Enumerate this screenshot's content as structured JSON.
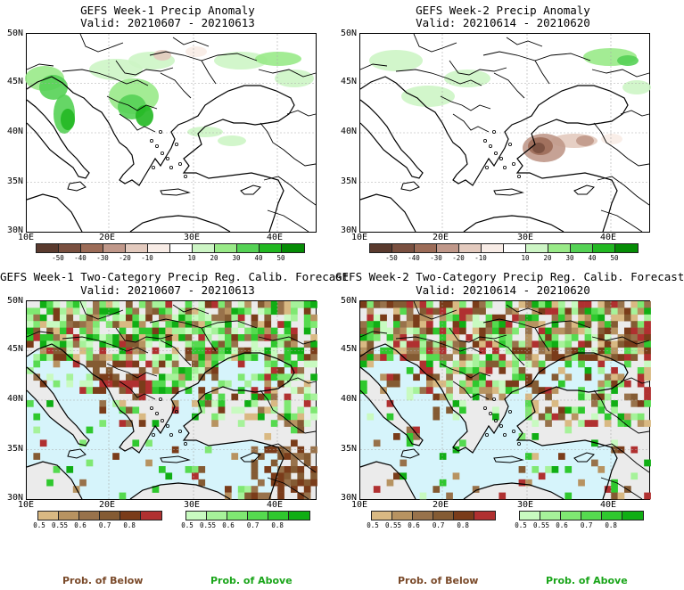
{
  "panels": [
    {
      "title": "GEFS Week-1 Precip Anomaly",
      "valid": "Valid: 20210607 - 20210613"
    },
    {
      "title": "GEFS Week-2 Precip Anomaly",
      "valid": "Valid: 20210614 - 20210620"
    },
    {
      "title": "GEFS Week-1 Two-Category Precip Reg. Calib. Forecast",
      "valid": "Valid: 20210607 - 20210613"
    },
    {
      "title": "GEFS Week-2 Two-Category Precip Reg. Calib. Forecast",
      "valid": "Valid: 20210614 - 20210620"
    }
  ],
  "lat_labels": [
    "50N",
    "45N",
    "40N",
    "35N",
    "30N"
  ],
  "lon_labels": [
    "10E",
    "20E",
    "30E",
    "40E"
  ],
  "anomaly_colorbar": {
    "ticks": [
      "-50",
      "-40",
      "-30",
      "-20",
      "-10",
      "10",
      "20",
      "30",
      "40",
      "50"
    ],
    "colors": [
      "#5a3a2e",
      "#7a5040",
      "#9c6c58",
      "#c0988a",
      "#e3cabe",
      "#f8ece6",
      "#ffffff",
      "#cdf5c5",
      "#99ea88",
      "#55d255",
      "#22b822",
      "#058c05"
    ]
  },
  "prob_below": {
    "ticks": [
      "0.5",
      "0.55",
      "0.6",
      "0.7",
      "0.8"
    ],
    "colors": [
      "#d9b983",
      "#b79361",
      "#98724b",
      "#845b33",
      "#7a3c1a",
      "#b03030"
    ]
  },
  "prob_above": {
    "ticks": [
      "0.5",
      "0.55",
      "0.6",
      "0.7",
      "0.8"
    ],
    "colors": [
      "#c8fac0",
      "#a6f29a",
      "#7fe872",
      "#55da4f",
      "#2fc82e",
      "#10ae14"
    ]
  },
  "footer": {
    "below": "Prob. of Below",
    "above": "Prob. of Above"
  },
  "map_colors": {
    "sea_bottom": "#d6f4fb",
    "land_grey": "#ebebeb"
  }
}
